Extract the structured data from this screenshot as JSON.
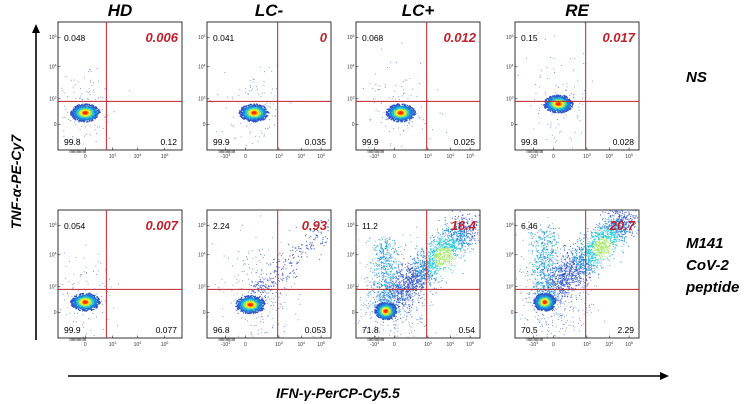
{
  "chart_data": {
    "type": "scatter",
    "title": "",
    "xlabel": "IFN-γ-PerCP-Cy5.5",
    "ylabel": "TNF-α-PE-Cy7",
    "columns": [
      "HD",
      "LC-",
      "LC+",
      "RE"
    ],
    "rows": [
      {
        "label_lines": [
          "NS"
        ]
      },
      {
        "label_lines": [
          "M141",
          "CoV-2",
          "peptide"
        ]
      }
    ],
    "y_ticks": [
      "10^5",
      "10^4",
      "10^3",
      "0"
    ],
    "x_ticks": [
      "0",
      "10^3",
      "10^4",
      "10^5"
    ],
    "x_ticks_neg": [
      "-10^3",
      "0",
      "10^3",
      "10^4",
      "10^5"
    ],
    "panels": [
      {
        "row": 0,
        "col": 0,
        "sample": "HD",
        "stim": "NS",
        "q1_tnf_only": "0.048",
        "q2_double": "0.006",
        "q3_neg": "99.8",
        "q4_ifn_only": "0.12",
        "x_axis": "pos",
        "cluster": [
          0.22,
          0.71
        ],
        "pop": 0
      },
      {
        "row": 0,
        "col": 1,
        "sample": "LC-",
        "stim": "NS",
        "q1_tnf_only": "0.041",
        "q2_double": "0",
        "q3_neg": "99.9",
        "q4_ifn_only": "0.035",
        "x_axis": "neg",
        "cluster": [
          0.38,
          0.71
        ],
        "pop": 0
      },
      {
        "row": 0,
        "col": 2,
        "sample": "LC+",
        "stim": "NS",
        "q1_tnf_only": "0.068",
        "q2_double": "0.012",
        "q3_neg": "99.9",
        "q4_ifn_only": "0.025",
        "x_axis": "neg",
        "cluster": [
          0.36,
          0.71
        ],
        "pop": 0
      },
      {
        "row": 0,
        "col": 3,
        "sample": "RE",
        "stim": "NS",
        "q1_tnf_only": "0.15",
        "q2_double": "0.017",
        "q3_neg": "99.8",
        "q4_ifn_only": "0.028",
        "x_axis": "neg",
        "cluster": [
          0.35,
          0.64
        ],
        "pop": 0
      },
      {
        "row": 1,
        "col": 0,
        "sample": "HD",
        "stim": "M141 CoV-2 peptide",
        "q1_tnf_only": "0.054",
        "q2_double": "0.007",
        "q3_neg": "99.9",
        "q4_ifn_only": "0.077",
        "x_axis": "pos",
        "cluster": [
          0.22,
          0.72
        ],
        "pop": 0
      },
      {
        "row": 1,
        "col": 1,
        "sample": "LC-",
        "stim": "M141 CoV-2 peptide",
        "q1_tnf_only": "2.24",
        "q2_double": "0.93",
        "q3_neg": "96.8",
        "q4_ifn_only": "0.053",
        "x_axis": "neg",
        "cluster": [
          0.35,
          0.74
        ],
        "pop": 1
      },
      {
        "row": 1,
        "col": 2,
        "sample": "LC+",
        "stim": "M141 CoV-2 peptide",
        "q1_tnf_only": "11.2",
        "q2_double": "16.4",
        "q3_neg": "71.8",
        "q4_ifn_only": "0.54",
        "x_axis": "neg",
        "cluster": [
          0.24,
          0.79
        ],
        "pop": 3
      },
      {
        "row": 1,
        "col": 3,
        "sample": "RE",
        "stim": "M141 CoV-2 peptide",
        "q1_tnf_only": "6.46",
        "q2_double": "20.7",
        "q3_neg": "70.5",
        "q4_ifn_only": "2.29",
        "x_axis": "neg",
        "cluster": [
          0.24,
          0.72
        ],
        "pop": 3
      }
    ]
  }
}
